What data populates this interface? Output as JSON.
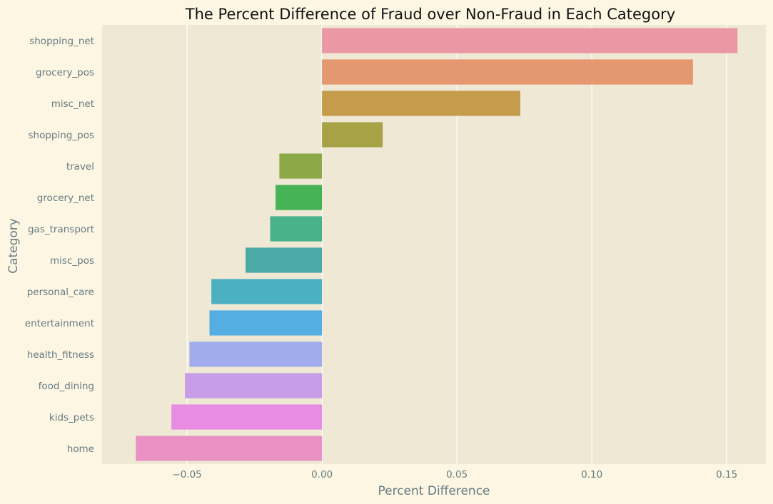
{
  "chart_data": {
    "type": "bar",
    "orientation": "horizontal",
    "title": "The Percent Difference of Fraud over Non-Fraud in Each Category",
    "xlabel": "Percent Difference",
    "ylabel": "Category",
    "xlim": [
      -0.0815,
      0.1645
    ],
    "xticks": [
      -0.05,
      0.0,
      0.05,
      0.1,
      0.15
    ],
    "xtick_labels": [
      "−0.05",
      "0.00",
      "0.05",
      "0.10",
      "0.15"
    ],
    "grid": "vertical lines on x ticks",
    "categories": [
      "shopping_net",
      "grocery_pos",
      "misc_net",
      "shopping_pos",
      "travel",
      "grocery_net",
      "gas_transport",
      "misc_pos",
      "personal_care",
      "entertainment",
      "health_fitness",
      "food_dining",
      "kids_pets",
      "home"
    ],
    "values": [
      0.154,
      0.1375,
      0.0735,
      0.0225,
      -0.0158,
      -0.0172,
      -0.0192,
      -0.0283,
      -0.041,
      -0.0417,
      -0.0491,
      -0.0508,
      -0.0558,
      -0.069
    ],
    "colors": [
      "#eb98a5",
      "#e49870",
      "#c49c4b",
      "#a8a246",
      "#8ca947",
      "#46b356",
      "#49b18c",
      "#4ba9a6",
      "#4cb0c3",
      "#55ade1",
      "#a0aceb",
      "#c79de9",
      "#e88be3",
      "#e891c2"
    ]
  },
  "colors": {
    "figure_background": "#fdf6e3",
    "plot_background": "#eee8d5",
    "grid": "#ffffff",
    "tick_text": "#657b83",
    "title_text": "#111111"
  }
}
